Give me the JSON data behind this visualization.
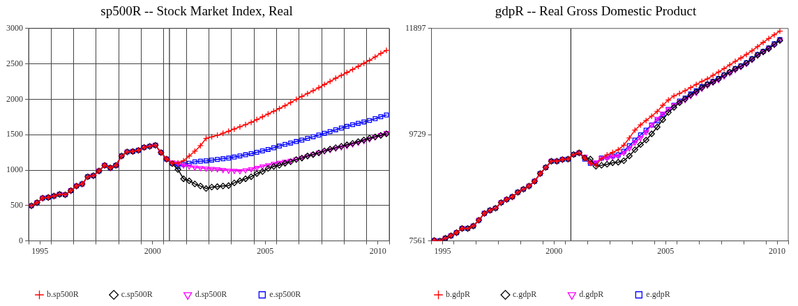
{
  "chart_data": [
    {
      "type": "line",
      "title": "sp500R -- Stock Market Index, Real",
      "x": [
        1995.125,
        1995.375,
        1995.625,
        1995.875,
        1996.125,
        1996.375,
        1996.625,
        1996.875,
        1997.125,
        1997.375,
        1997.625,
        1997.875,
        1998.125,
        1998.375,
        1998.625,
        1998.875,
        1999.125,
        1999.375,
        1999.625,
        1999.875,
        2000.125,
        2000.375,
        2000.625,
        2000.875,
        2001.125,
        2001.375,
        2001.625,
        2001.875,
        2002.125,
        2002.375,
        2002.625,
        2002.875,
        2003.125,
        2003.375,
        2003.625,
        2003.875,
        2004.125,
        2004.375,
        2004.625,
        2004.875,
        2005.125,
        2005.375,
        2005.625,
        2005.875,
        2006.125,
        2006.375,
        2006.625,
        2006.875,
        2007.125,
        2007.375,
        2007.625,
        2007.875,
        2008.125,
        2008.375,
        2008.625,
        2008.875,
        2009.125,
        2009.375,
        2009.625,
        2009.875,
        2010.125,
        2010.375,
        2010.625,
        2010.875
      ],
      "xlim": [
        1995,
        2011
      ],
      "xticks": [
        {
          "value": 1995,
          "label": null
        },
        {
          "value": 1995.5,
          "label": "1995"
        },
        {
          "value": 1996,
          "label": null
        },
        {
          "value": 1997,
          "label": null
        },
        {
          "value": 1998,
          "label": null
        },
        {
          "value": 1999,
          "label": null
        },
        {
          "value": 2000,
          "label": null
        },
        {
          "value": 2000.5,
          "label": "2000"
        },
        {
          "value": 2001,
          "label": null
        },
        {
          "value": 2002,
          "label": null
        },
        {
          "value": 2003,
          "label": null
        },
        {
          "value": 2004,
          "label": null
        },
        {
          "value": 2005,
          "label": null
        },
        {
          "value": 2005.5,
          "label": "2005"
        },
        {
          "value": 2006,
          "label": null
        },
        {
          "value": 2007,
          "label": null
        },
        {
          "value": 2008,
          "label": null
        },
        {
          "value": 2009,
          "label": null
        },
        {
          "value": 2010,
          "label": null
        },
        {
          "value": 2010.5,
          "label": "2010"
        },
        {
          "value": 2011,
          "label": null
        }
      ],
      "ylim": [
        0,
        3000
      ],
      "yticks": [
        0,
        500,
        1000,
        1500,
        2000,
        2500,
        3000
      ],
      "grid": true,
      "legend": "bottom",
      "ref_lines": [
        {
          "axis": "x",
          "value": 2001.25,
          "color": "#000000"
        }
      ],
      "series": [
        {
          "name": "b.sp500R",
          "color": "#ff0000",
          "marker": "cross",
          "values": [
            497,
            540,
            605,
            614,
            634,
            658,
            652,
            710,
            775,
            804,
            906,
            921,
            988,
            1067,
            1032,
            1067,
            1199,
            1257,
            1263,
            1280,
            1321,
            1336,
            1351,
            1248,
            1155,
            1096,
            1100,
            1131,
            1199,
            1266,
            1345,
            1447,
            1469,
            1491,
            1520,
            1548,
            1579,
            1611,
            1641,
            1675,
            1713,
            1752,
            1792,
            1831,
            1869,
            1909,
            1953,
            1998,
            2040,
            2081,
            2121,
            2163,
            2208,
            2252,
            2297,
            2337,
            2378,
            2421,
            2464,
            2508,
            2549,
            2598,
            2648,
            2690
          ]
        },
        {
          "name": "c.sp500R",
          "color": "#000000",
          "marker": "diamond",
          "values": [
            497,
            540,
            605,
            614,
            634,
            658,
            652,
            710,
            775,
            804,
            906,
            921,
            988,
            1067,
            1032,
            1067,
            1199,
            1257,
            1263,
            1280,
            1321,
            1336,
            1351,
            1248,
            1155,
            1090,
            1008,
            877,
            848,
            804,
            775,
            740,
            760,
            766,
            775,
            781,
            819,
            848,
            877,
            906,
            950,
            979,
            1023,
            1052,
            1067,
            1096,
            1117,
            1149,
            1169,
            1199,
            1219,
            1243,
            1272,
            1295,
            1316,
            1336,
            1357,
            1378,
            1401,
            1425,
            1450,
            1469,
            1490,
            1512
          ]
        },
        {
          "name": "d.sp500R",
          "color": "#ff00ff",
          "marker": "triangle",
          "values": [
            497,
            540,
            605,
            614,
            634,
            658,
            652,
            710,
            775,
            804,
            906,
            921,
            988,
            1067,
            1032,
            1067,
            1199,
            1257,
            1263,
            1280,
            1321,
            1336,
            1351,
            1248,
            1155,
            1110,
            1096,
            1067,
            1052,
            1038,
            1030,
            1023,
            1018,
            1014,
            1004,
            994,
            990,
            985,
            998,
            1013,
            1032,
            1052,
            1071,
            1090,
            1105,
            1118,
            1134,
            1154,
            1174,
            1199,
            1223,
            1247,
            1266,
            1285,
            1305,
            1323,
            1343,
            1364,
            1387,
            1412,
            1436,
            1466,
            1496,
            1524
          ]
        },
        {
          "name": "e.sp500R",
          "color": "#0000ff",
          "marker": "square",
          "values": [
            497,
            540,
            605,
            614,
            634,
            658,
            652,
            710,
            775,
            804,
            906,
            921,
            988,
            1067,
            1032,
            1067,
            1199,
            1257,
            1263,
            1280,
            1321,
            1336,
            1351,
            1248,
            1155,
            1096,
            1052,
            1082,
            1096,
            1117,
            1125,
            1131,
            1141,
            1150,
            1159,
            1169,
            1184,
            1200,
            1216,
            1232,
            1251,
            1271,
            1291,
            1315,
            1339,
            1363,
            1382,
            1403,
            1423,
            1448,
            1471,
            1495,
            1520,
            1544,
            1569,
            1593,
            1617,
            1641,
            1660,
            1680,
            1700,
            1726,
            1753,
            1778
          ]
        }
      ]
    },
    {
      "type": "line",
      "title": "gdpR -- Real Gross Domestic Product",
      "x": [
        1995.125,
        1995.375,
        1995.625,
        1995.875,
        1996.125,
        1996.375,
        1996.625,
        1996.875,
        1997.125,
        1997.375,
        1997.625,
        1997.875,
        1998.125,
        1998.375,
        1998.625,
        1998.875,
        1999.125,
        1999.375,
        1999.625,
        1999.875,
        2000.125,
        2000.375,
        2000.625,
        2000.875,
        2001.125,
        2001.375,
        2001.625,
        2001.875,
        2002.125,
        2002.375,
        2002.625,
        2002.875,
        2003.125,
        2003.375,
        2003.625,
        2003.875,
        2004.125,
        2004.375,
        2004.625,
        2004.875,
        2005.125,
        2005.375,
        2005.625,
        2005.875,
        2006.125,
        2006.375,
        2006.625,
        2006.875,
        2007.125,
        2007.375,
        2007.625,
        2007.875,
        2008.125,
        2008.375,
        2008.625,
        2008.875,
        2009.125,
        2009.375,
        2009.625,
        2009.875,
        2010.125,
        2010.375,
        2010.625
      ],
      "xlim": [
        1995,
        2011
      ],
      "xticks": [
        {
          "value": 1995,
          "label": null
        },
        {
          "value": 1995.5,
          "label": "1995"
        },
        {
          "value": 1996,
          "label": null
        },
        {
          "value": 1997,
          "label": null
        },
        {
          "value": 1998,
          "label": null
        },
        {
          "value": 1999,
          "label": null
        },
        {
          "value": 2000,
          "label": null
        },
        {
          "value": 2000.5,
          "label": "2000"
        },
        {
          "value": 2001,
          "label": null
        },
        {
          "value": 2002,
          "label": null
        },
        {
          "value": 2003,
          "label": null
        },
        {
          "value": 2004,
          "label": null
        },
        {
          "value": 2005,
          "label": null
        },
        {
          "value": 2005.5,
          "label": "2005"
        },
        {
          "value": 2006,
          "label": null
        },
        {
          "value": 2007,
          "label": null
        },
        {
          "value": 2008,
          "label": null
        },
        {
          "value": 2009,
          "label": null
        },
        {
          "value": 2010,
          "label": null
        },
        {
          "value": 2010.5,
          "label": "2010"
        },
        {
          "value": 2011,
          "label": null
        }
      ],
      "ylim": [
        7561,
        11897
      ],
      "yticks": [
        7561,
        9729,
        11897
      ],
      "legend": "bottom",
      "ref_lines": [
        {
          "axis": "x",
          "value": 2001.25,
          "color": "#000000"
        }
      ],
      "series": [
        {
          "name": "b.gdpR",
          "color": "#ff0000",
          "marker": "cross",
          "values": [
            7570,
            7561,
            7616,
            7667,
            7730,
            7815,
            7815,
            7865,
            7984,
            8123,
            8186,
            8229,
            8343,
            8407,
            8461,
            8554,
            8617,
            8681,
            8778,
            8935,
            9061,
            9188,
            9188,
            9222,
            9231,
            9324,
            9358,
            9250,
            9146,
            9104,
            9240,
            9315,
            9366,
            9421,
            9514,
            9662,
            9822,
            9928,
            10017,
            10106,
            10203,
            10329,
            10436,
            10519,
            10570,
            10626,
            10689,
            10753,
            10816,
            10867,
            10938,
            11006,
            11077,
            11153,
            11225,
            11293,
            11365,
            11441,
            11526,
            11610,
            11691,
            11767,
            11843
          ]
        },
        {
          "name": "c.gdpR",
          "color": "#000000",
          "marker": "diamond",
          "values": [
            7570,
            7561,
            7616,
            7667,
            7730,
            7815,
            7815,
            7865,
            7984,
            8123,
            8186,
            8229,
            8343,
            8407,
            8461,
            8554,
            8617,
            8681,
            8778,
            8935,
            9061,
            9188,
            9188,
            9222,
            9231,
            9324,
            9358,
            9256,
            9230,
            9083,
            9104,
            9125,
            9155,
            9167,
            9197,
            9294,
            9421,
            9527,
            9619,
            9746,
            9885,
            10034,
            10182,
            10287,
            10380,
            10456,
            10541,
            10604,
            10689,
            10753,
            10803,
            10867,
            10943,
            11006,
            11070,
            11124,
            11188,
            11268,
            11353,
            11420,
            11484,
            11569,
            11652
          ]
        },
        {
          "name": "d.gdpR",
          "color": "#ff00ff",
          "marker": "triangle",
          "values": [
            7570,
            7561,
            7616,
            7667,
            7730,
            7815,
            7815,
            7865,
            7984,
            8123,
            8186,
            8229,
            8343,
            8407,
            8461,
            8554,
            8617,
            8681,
            8778,
            8935,
            9061,
            9188,
            9188,
            9222,
            9231,
            9324,
            9358,
            9280,
            9165,
            9165,
            9251,
            9251,
            9273,
            9294,
            9358,
            9450,
            9569,
            9662,
            9780,
            9928,
            10055,
            10160,
            10245,
            10329,
            10393,
            10436,
            10519,
            10583,
            10668,
            10731,
            10795,
            10845,
            10921,
            10984,
            11048,
            11111,
            11175,
            11259,
            11344,
            11416,
            11479,
            11563,
            11652
          ]
        },
        {
          "name": "e.gdpR",
          "color": "#0000ff",
          "marker": "square",
          "values": [
            7570,
            7561,
            7616,
            7667,
            7730,
            7815,
            7815,
            7865,
            7984,
            8123,
            8186,
            8229,
            8343,
            8407,
            8461,
            8554,
            8617,
            8681,
            8778,
            8935,
            9061,
            9188,
            9188,
            9222,
            9231,
            9324,
            9358,
            9231,
            9146,
            9146,
            9251,
            9273,
            9294,
            9315,
            9391,
            9505,
            9619,
            9725,
            9822,
            9928,
            10012,
            10139,
            10245,
            10329,
            10414,
            10477,
            10562,
            10626,
            10710,
            10760,
            10816,
            10879,
            10950,
            11006,
            11077,
            11133,
            11196,
            11280,
            11365,
            11428,
            11501,
            11584,
            11669
          ]
        }
      ]
    }
  ]
}
